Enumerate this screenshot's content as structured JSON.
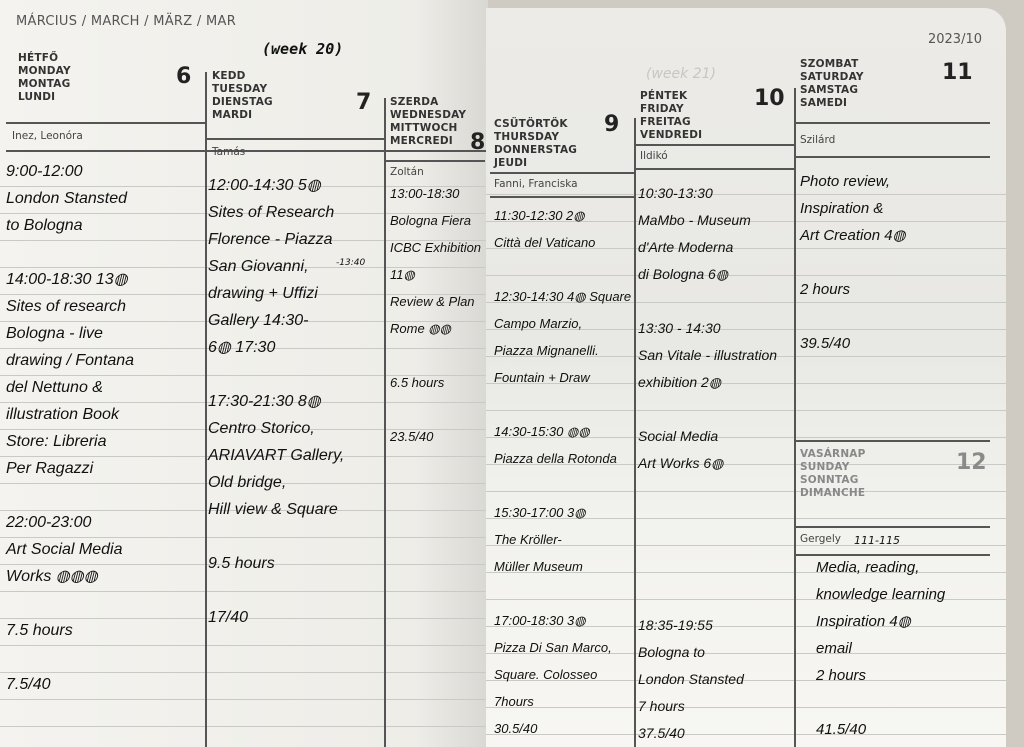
{
  "header": {
    "month": "MÁRCIUS / MARCH / MÄRZ / MAR",
    "week_note": "(week 20)",
    "year_week": "2023/10",
    "ghost_week_note": "(week 21)"
  },
  "days": {
    "mon": {
      "names": [
        "HÉTFŐ",
        "MONDAY",
        "MONTAG",
        "LUNDI"
      ],
      "num": "6",
      "nameday": "Inez, Leonóra",
      "lines": [
        "9:00-12:00",
        "London Stansted",
        "to Bologna",
        "",
        "14:00-18:30 13◍",
        "Sites of research",
        "Bologna - live",
        "drawing / Fontana",
        "del Nettuno &",
        "illustration Book",
        "Store: Libreria",
        "Per Ragazzi",
        "",
        "22:00-23:00",
        "Art Social Media",
        "Works ◍◍◍",
        "",
        "7.5 hours",
        "",
        "7.5/40"
      ]
    },
    "tue": {
      "names": [
        "KEDD",
        "TUESDAY",
        "DIENSTAG",
        "MARDI"
      ],
      "num": "7",
      "nameday": "Tamás",
      "note": "-13:40",
      "lines": [
        "12:00-14:30 5◍",
        "Sites of Research",
        "Florence - Piazza",
        "San Giovanni,",
        "drawing + Uffizi",
        "Gallery 14:30-",
        "6◍  17:30",
        "",
        "17:30-21:30 8◍",
        "Centro Storico,",
        "ARIAVART Gallery,",
        "Old bridge,",
        "Hill view & Square",
        "",
        "9.5 hours",
        "",
        "17/40"
      ]
    },
    "wed": {
      "names": [
        "SZERDA",
        "WEDNESDAY",
        "MITTWOCH",
        "MERCREDI"
      ],
      "num": "8",
      "nameday": "Zoltán",
      "lines": [
        "13:00-18:30",
        "Bologna Fiera",
        "ICBC Exhibition",
        "11◍",
        "Review & Plan",
        "Rome ◍◍",
        "",
        "6.5 hours",
        "",
        "23.5/40"
      ]
    },
    "thu": {
      "names": [
        "CSÜTÖRTÖK",
        "THURSDAY",
        "DONNERSTAG",
        "JEUDI"
      ],
      "num": "9",
      "nameday": "Fanni, Franciska",
      "lines": [
        "11:30-12:30 2◍",
        "Città del Vaticano",
        "",
        "12:30-14:30 4◍ Square",
        "Campo Marzio,",
        "Piazza Mignanelli.",
        "Fountain + Draw",
        "",
        "14:30-15:30 ◍◍",
        "Piazza della Rotonda",
        "",
        "15:30-17:00 3◍",
        "The Kröller-",
        "Müller Museum",
        "",
        "17:00-18:30 3◍",
        "Pizza Di San Marco,",
        "Square. Colosseo",
        "7hours",
        "30.5/40"
      ]
    },
    "fri": {
      "names": [
        "PÉNTEK",
        "FRIDAY",
        "FREITAG",
        "VENDREDI"
      ],
      "num": "10",
      "nameday": "Ildikó",
      "lines": [
        "10:30-13:30",
        "MaMbo - Museum",
        "d'Arte Moderna",
        "di Bologna 6◍",
        "",
        "13:30 - 14:30",
        "San Vitale - illustration",
        "exhibition 2◍",
        "",
        "Social Media",
        "Art Works 6◍",
        "",
        "",
        "",
        "",
        "",
        "18:35-19:55",
        "Bologna to",
        "London Stansted",
        "7 hours",
        "37.5/40"
      ]
    },
    "sat": {
      "names": [
        "SZOMBAT",
        "SATURDAY",
        "SAMSTAG",
        "SAMEDI"
      ],
      "num": "11",
      "nameday": "Szilárd",
      "lines": [
        "Photo review,",
        "Inspiration &",
        "Art Creation 4◍",
        "",
        "2 hours",
        "",
        "39.5/40"
      ]
    },
    "sun": {
      "names": [
        "VASÁRNAP",
        "SUNDAY",
        "SONNTAG",
        "DIMANCHE"
      ],
      "num": "12",
      "nameday": "Gergely",
      "note": "111-115",
      "lines": [
        "Media, reading,",
        "knowledge learning",
        "Inspiration 4◍",
        "email",
        "2 hours",
        "",
        "41.5/40"
      ]
    }
  },
  "colors": {
    "ink": "#111111",
    "paper": "#f1f0ec",
    "rule": "#c9c9c6"
  }
}
